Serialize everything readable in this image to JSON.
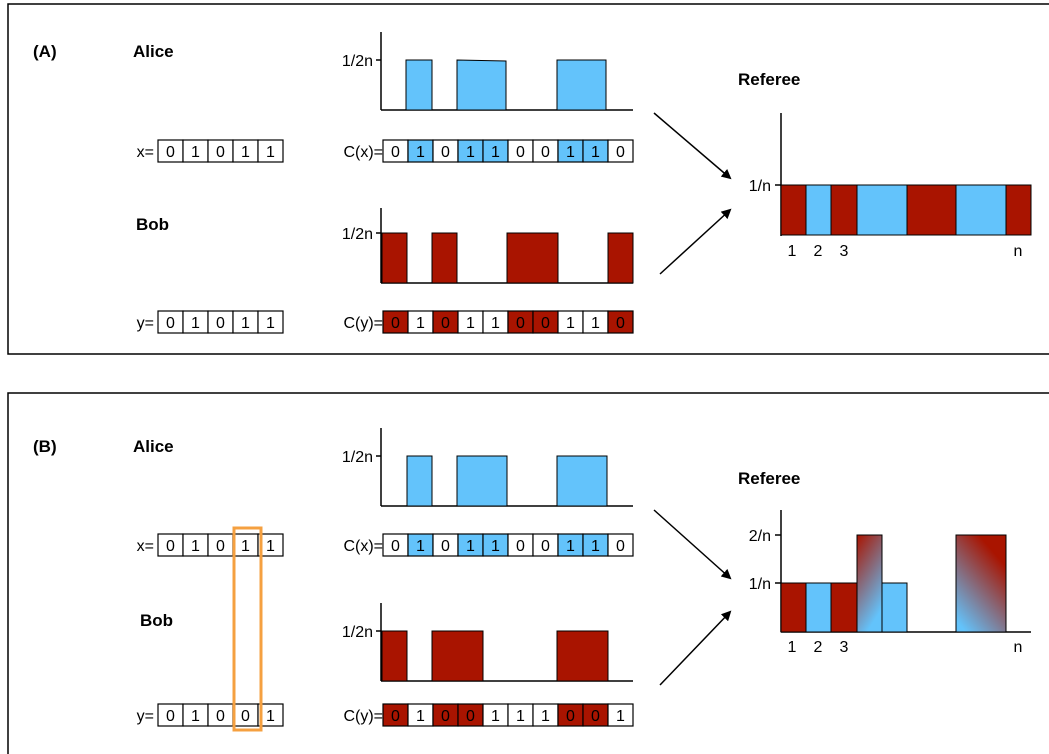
{
  "colors": {
    "blue": "#63c3fb",
    "red": "#a91400",
    "orange": "#f5a040",
    "line": "#000000"
  },
  "panels": [
    {
      "label": "(A)",
      "alice": "Alice",
      "bob": "Bob",
      "referee": "Referee",
      "x_prefix": "x=",
      "x_bits": [
        "0",
        "1",
        "0",
        "1",
        "1"
      ],
      "y_prefix": "y=",
      "y_bits": [
        "0",
        "1",
        "0",
        "1",
        "1"
      ],
      "cx_prefix": "C(x)=",
      "cx_bits": [
        "0",
        "1",
        "0",
        "1",
        "1",
        "0",
        "0",
        "1",
        "1",
        "0"
      ],
      "cx_highlight": [
        1,
        3,
        4,
        7,
        8
      ],
      "cy_prefix": "C(y)=",
      "cy_bits": [
        "0",
        "1",
        "0",
        "1",
        "1",
        "0",
        "0",
        "1",
        "1",
        "0"
      ],
      "cy_highlight": [
        0,
        2,
        5,
        6,
        9
      ],
      "alice_hist_tick": "1/2n",
      "bob_hist_tick": "1/2n",
      "referee_ticks": [
        "1/n"
      ],
      "referee_xlabels": [
        "1",
        "2",
        "3",
        "n"
      ]
    },
    {
      "label": "(B)",
      "alice": "Alice",
      "bob": "Bob",
      "referee": "Referee",
      "x_prefix": "x=",
      "x_bits": [
        "0",
        "1",
        "0",
        "1",
        "1"
      ],
      "y_prefix": "y=",
      "y_bits": [
        "0",
        "1",
        "0",
        "0",
        "1"
      ],
      "cx_prefix": "C(x)=",
      "cx_bits": [
        "0",
        "1",
        "0",
        "1",
        "1",
        "0",
        "0",
        "1",
        "1",
        "0"
      ],
      "cx_highlight": [
        1,
        3,
        4,
        7,
        8
      ],
      "cy_prefix": "C(y)=",
      "cy_bits": [
        "0",
        "1",
        "0",
        "0",
        "1",
        "1",
        "1",
        "0",
        "0",
        "1"
      ],
      "cy_highlight": [
        0,
        2,
        3,
        7,
        8
      ],
      "alice_hist_tick": "1/2n",
      "bob_hist_tick": "1/2n",
      "referee_ticks": [
        "2/n",
        "1/n"
      ],
      "referee_xlabels": [
        "1",
        "2",
        "3",
        "n"
      ]
    }
  ]
}
